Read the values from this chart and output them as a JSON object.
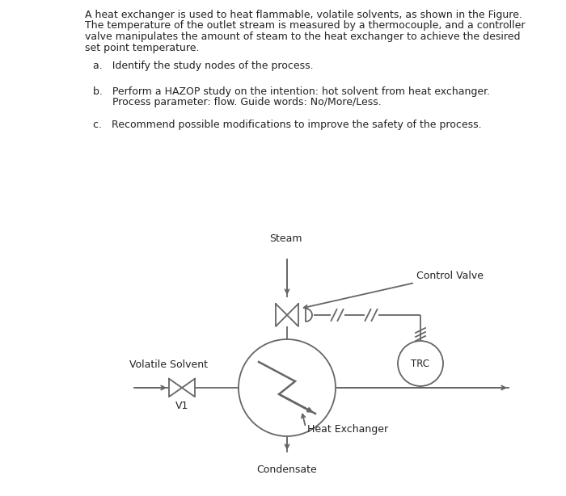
{
  "background_color": "#ffffff",
  "text_color": "#222222",
  "line_color": "#666666",
  "para_line1": "A heat exchanger is used to heat flammable, volatile solvents, as shown in the Figure.",
  "para_line2": "The temperature of the outlet stream is measured by a thermocouple, and a controller",
  "para_line3": "valve manipulates the amount of steam to the heat exchanger to achieve the desired",
  "para_line4": "set point temperature.",
  "item_a": "a.   Identify the study nodes of the process.",
  "item_b1": "b.   Perform a HAZOP study on the intention: hot solvent from heat exchanger.",
  "item_b2": "      Process parameter: flow. Guide words: No/More/Less.",
  "item_c": "c.   Recommend possible modifications to improve the safety of the process.",
  "label_steam": "Steam",
  "label_control_valve": "Control Valve",
  "label_volatile_solvent": "Volatile Solvent",
  "label_v1": "V1",
  "label_trc": "TRC",
  "label_heat_exchanger": "Heat Exchanger",
  "label_condensate": "Condensate"
}
